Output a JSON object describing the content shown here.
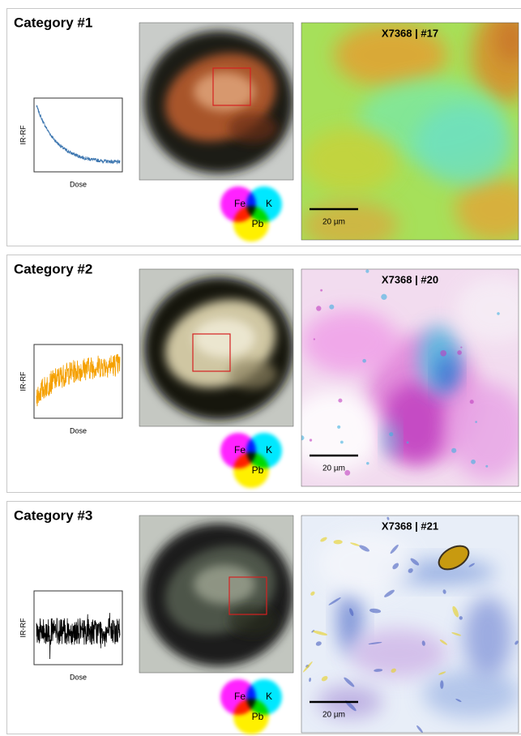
{
  "panels": [
    {
      "title": "Category #1",
      "plot": {
        "y_label": "IR-RF",
        "x_label": "Dose"
      },
      "legend": {
        "labels": [
          "Fe",
          "K",
          "Pb"
        ]
      },
      "map": {
        "label": "X7368 | #17",
        "scale_label": "20 µm"
      }
    },
    {
      "title": "Category #2",
      "plot": {
        "y_label": "IR-RF",
        "x_label": "Dose"
      },
      "legend": {
        "labels": [
          "Fe",
          "K",
          "Pb"
        ]
      },
      "map": {
        "label": "X7368 | #20",
        "scale_label": "20 µm"
      }
    },
    {
      "title": "Category #3",
      "plot": {
        "y_label": "IR-RF",
        "x_label": "Dose"
      },
      "legend": {
        "labels": [
          "Fe",
          "K",
          "Pb"
        ]
      },
      "map": {
        "label": "X7368 | #21",
        "scale_label": "20 µm"
      }
    }
  ]
}
